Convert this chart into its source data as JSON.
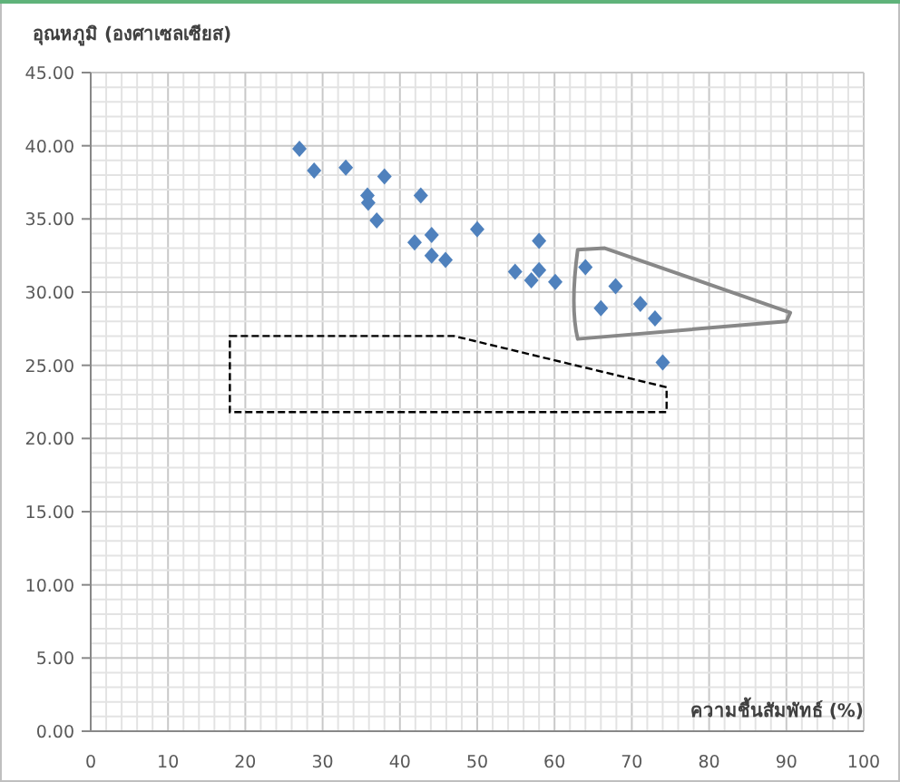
{
  "chart_data": {
    "type": "scatter",
    "ylabel": "อุณหภูมิ (องศาเซลเซียส)",
    "xlabel": "ความชื้นสัมพัทธ์ (%)",
    "x": [
      27.0,
      28.9,
      33.0,
      38.0,
      35.8,
      35.9,
      37.0,
      42.7,
      41.9,
      44.1,
      44.1,
      45.9,
      50.0,
      58.0,
      54.9,
      58.0,
      57.0,
      60.1,
      64.0,
      67.9,
      66.0,
      71.1,
      73.0,
      74.0
    ],
    "values": [
      39.8,
      38.3,
      38.5,
      37.9,
      36.6,
      36.1,
      34.9,
      36.6,
      33.4,
      33.9,
      32.5,
      32.2,
      34.3,
      33.5,
      31.4,
      31.5,
      30.8,
      30.7,
      31.7,
      30.4,
      28.9,
      29.2,
      28.2,
      25.2
    ],
    "color": "#4f81bd",
    "marker": "diamond",
    "xlim": [
      0,
      100
    ],
    "xticks": [
      0,
      10,
      20,
      30,
      40,
      50,
      60,
      70,
      80,
      90,
      100
    ],
    "ylim": [
      0,
      45
    ],
    "yticks": [
      {
        "value": 0,
        "label": "0.00"
      },
      {
        "value": 5,
        "label": "5.00"
      },
      {
        "value": 10,
        "label": "10.00"
      },
      {
        "value": 15,
        "label": "15.00"
      },
      {
        "value": 20,
        "label": "20.00"
      },
      {
        "value": 25,
        "label": "25.00"
      },
      {
        "value": 30,
        "label": "30.00"
      },
      {
        "value": 35,
        "label": "35.00"
      },
      {
        "value": 40,
        "label": "40.00"
      },
      {
        "value": 45,
        "label": "45.00"
      }
    ],
    "grid": true
  }
}
